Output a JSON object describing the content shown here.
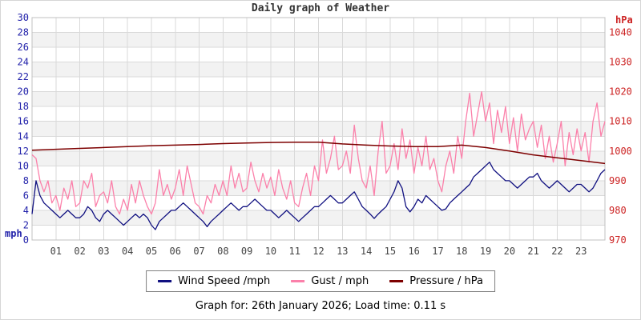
{
  "caption": "Graph for: 26th January 2026; Load time: 0.11 s",
  "chart_data": {
    "type": "line",
    "title": "Daily graph of Weather",
    "x_hours_range": [
      0,
      24
    ],
    "x_tick_labels": [
      "01",
      "02",
      "03",
      "04",
      "05",
      "06",
      "07",
      "08",
      "09",
      "10",
      "11",
      "12",
      "13",
      "14",
      "15",
      "16",
      "17",
      "18",
      "19",
      "20",
      "21",
      "22",
      "23"
    ],
    "left_axis": {
      "label": "mph",
      "min": 0,
      "max": 30,
      "ticks": [
        0,
        2,
        4,
        6,
        8,
        10,
        12,
        14,
        16,
        18,
        20,
        22,
        24,
        26,
        28,
        30
      ],
      "color": "#2222aa"
    },
    "right_axis": {
      "label": "hPa",
      "min": 970,
      "max": 1045,
      "ticks": [
        970,
        980,
        990,
        1000,
        1010,
        1020,
        1030,
        1040
      ],
      "color": "#cc2222"
    },
    "grid": {
      "line_color": "#d9d9d9",
      "border_color": "#c0c0c0",
      "band_color": "#f2f2f2",
      "band_step": 2
    },
    "x_tick_color": "#444444",
    "series": [
      {
        "name": "Wind Speed /mph",
        "color": "#101080",
        "axis": "left",
        "interval_minutes": 10,
        "values": [
          3.5,
          8,
          6,
          5,
          4.5,
          4,
          3.5,
          3,
          3.5,
          4,
          3.5,
          3,
          3,
          3.5,
          4.5,
          4,
          3,
          2.5,
          3.5,
          4,
          3.5,
          3,
          2.5,
          2,
          2.5,
          3,
          3.5,
          3,
          3.5,
          3,
          2,
          1.4,
          2.5,
          3,
          3.5,
          4,
          4,
          4.5,
          5,
          4.5,
          4,
          3.5,
          3,
          2.5,
          1.8,
          2.5,
          3,
          3.5,
          4,
          4.5,
          5,
          4.5,
          4,
          4.5,
          4.5,
          5,
          5.5,
          5,
          4.5,
          4,
          4,
          3.5,
          3,
          3.5,
          4,
          3.5,
          3,
          2.5,
          3,
          3.5,
          4,
          4.5,
          4.5,
          5,
          5.5,
          6,
          5.5,
          5,
          5,
          5.5,
          6,
          6.5,
          5.5,
          4.5,
          4,
          3.5,
          2.9,
          3.5,
          4,
          4.5,
          5.5,
          6.5,
          8,
          7,
          4.5,
          3.8,
          4.5,
          5.5,
          5,
          6,
          5.5,
          5,
          4.5,
          4,
          4.2,
          5,
          5.5,
          6,
          6.5,
          7,
          7.5,
          8.5,
          9,
          9.5,
          10,
          10.5,
          9.5,
          9,
          8.5,
          8,
          8,
          7.5,
          7,
          7.5,
          8,
          8.5,
          8.5,
          9,
          8,
          7.5,
          7,
          7.5,
          8,
          7.5,
          7,
          6.5,
          7,
          7.5,
          7.5,
          7,
          6.5,
          7,
          8,
          9,
          9.5
        ]
      },
      {
        "name": "Gust / mph",
        "color": "#fb80aa",
        "axis": "left",
        "interval_minutes": 10,
        "values": [
          11.5,
          11,
          8,
          6.5,
          8,
          5,
          6,
          4,
          7,
          5.5,
          8,
          4.5,
          5,
          8,
          7,
          9,
          4.5,
          6,
          6.5,
          5,
          8,
          4.5,
          3.5,
          5.5,
          4,
          7.5,
          5,
          8,
          6,
          4.5,
          3.5,
          5,
          9.5,
          6,
          7.5,
          5.5,
          7,
          9.5,
          6,
          10,
          7.5,
          5,
          4.5,
          3.5,
          6,
          5,
          7.5,
          6,
          8,
          6,
          10,
          7,
          9,
          6.5,
          7,
          10.5,
          8,
          6.5,
          9,
          7,
          8.5,
          6,
          9.5,
          7,
          5.5,
          8,
          5,
          4.5,
          7,
          9,
          6,
          10,
          8,
          13.5,
          9,
          11,
          14,
          9.5,
          10,
          12,
          9,
          15.5,
          11,
          8,
          7,
          10,
          6,
          12,
          16,
          9,
          10,
          13,
          9.5,
          15,
          11,
          13.5,
          9,
          12.5,
          10,
          14,
          9.5,
          11,
          8,
          6.5,
          10,
          12,
          9,
          14,
          11,
          16,
          19.8,
          14,
          17,
          20,
          16,
          18.5,
          13,
          17.5,
          14.5,
          18,
          13,
          16.5,
          12,
          17,
          13.5,
          15,
          16,
          12.5,
          15.5,
          11,
          14,
          10.5,
          13,
          16,
          10,
          14.5,
          11.5,
          15,
          12,
          14.5,
          10.5,
          16,
          18.5,
          14,
          16
        ]
      },
      {
        "name": "Pressure / hPa",
        "color": "#7d0000",
        "axis": "right",
        "interval_minutes": 60,
        "values": [
          1000.3,
          1000.6,
          1000.9,
          1001.2,
          1001.5,
          1001.8,
          1002,
          1002.2,
          1002.5,
          1002.7,
          1002.9,
          1003,
          1003,
          1002.4,
          1002,
          1001.7,
          1001.5,
          1001.5,
          1002,
          1001.2,
          1000,
          998.7,
          997.7,
          996.8,
          995.8
        ]
      }
    ],
    "legend_position": "bottom"
  }
}
